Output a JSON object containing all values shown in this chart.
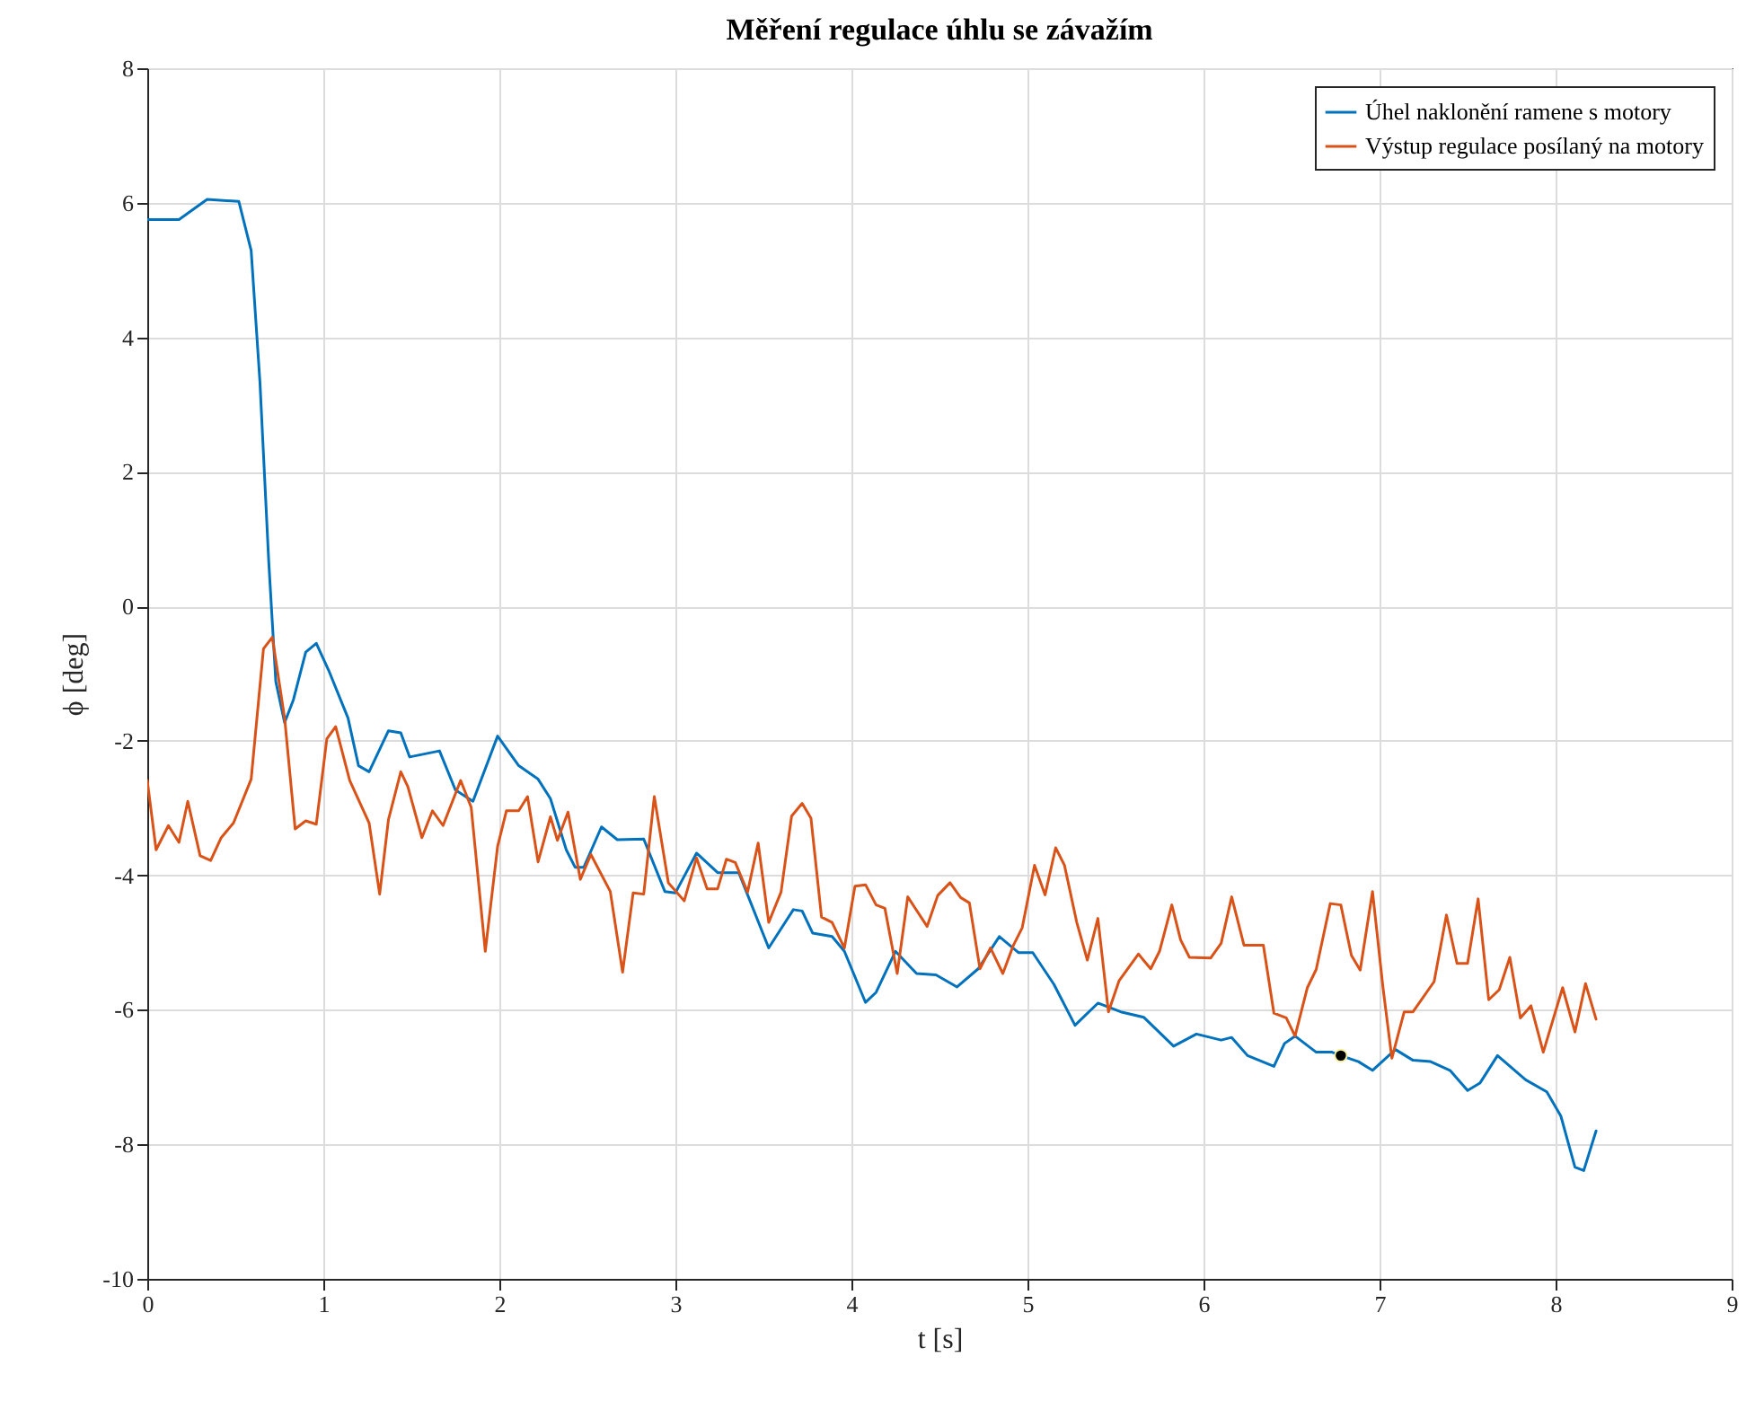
{
  "chart_data": {
    "type": "line",
    "title": "Měření regulace úhlu se závažím",
    "xlabel": "t [s]",
    "ylabel": "ϕ [deg]",
    "xlim": [
      0,
      9
    ],
    "ylim": [
      -10,
      8
    ],
    "xticks": [
      0,
      1,
      2,
      3,
      4,
      5,
      6,
      7,
      8,
      9
    ],
    "yticks": [
      -10,
      -8,
      -6,
      -4,
      -2,
      0,
      2,
      4,
      6,
      8
    ],
    "grid": true,
    "legend": "top right",
    "series": [
      {
        "name": "Úhel naklonění ramene s motory",
        "color": "#0072bd",
        "x": [
          0,
          0.18,
          0.34,
          0.52,
          0.59,
          0.64,
          0.69,
          0.73,
          0.78,
          0.83,
          0.9,
          0.96,
          1.03,
          1.14,
          1.2,
          1.26,
          1.37,
          1.44,
          1.49,
          1.66,
          1.75,
          1.85,
          1.99,
          2.11,
          2.22,
          2.29,
          2.38,
          2.43,
          2.48,
          2.58,
          2.67,
          2.82,
          2.94,
          3.0,
          3.12,
          3.24,
          3.36,
          3.53,
          3.67,
          3.72,
          3.78,
          3.89,
          3.96,
          4.08,
          4.14,
          4.25,
          4.37,
          4.48,
          4.6,
          4.72,
          4.84,
          4.95,
          5.03,
          5.15,
          5.27,
          5.4,
          5.53,
          5.66,
          5.83,
          5.96,
          6.1,
          6.16,
          6.25,
          6.4,
          6.46,
          6.52,
          6.64,
          6.73,
          6.78,
          6.88,
          6.96,
          7.09,
          7.19,
          7.29,
          7.4,
          7.5,
          7.57,
          7.67,
          7.83,
          7.95,
          8.03,
          8.11,
          8.16,
          8.23
        ],
        "values": [
          5.75,
          5.75,
          6.05,
          6.02,
          5.29,
          3.33,
          0.66,
          -1.12,
          -1.73,
          -1.39,
          -0.68,
          -0.55,
          -0.95,
          -1.66,
          -2.37,
          -2.46,
          -1.85,
          -1.88,
          -2.24,
          -2.15,
          -2.73,
          -2.9,
          -1.93,
          -2.37,
          -2.57,
          -2.86,
          -3.62,
          -3.88,
          -3.88,
          -3.28,
          -3.47,
          -3.46,
          -4.24,
          -4.26,
          -3.67,
          -3.96,
          -3.96,
          -5.08,
          -4.51,
          -4.53,
          -4.86,
          -4.91,
          -5.13,
          -5.89,
          -5.74,
          -5.13,
          -5.46,
          -5.48,
          -5.66,
          -5.39,
          -4.91,
          -5.15,
          -5.15,
          -5.62,
          -6.23,
          -5.9,
          -6.03,
          -6.11,
          -6.54,
          -6.36,
          -6.45,
          -6.41,
          -6.68,
          -6.84,
          -6.5,
          -6.39,
          -6.63,
          -6.63,
          -6.68,
          -6.77,
          -6.9,
          -6.59,
          -6.75,
          -6.77,
          -6.9,
          -7.2,
          -7.09,
          -6.68,
          -7.04,
          -7.22,
          -7.58,
          -8.34,
          -8.39,
          -7.8
        ]
      },
      {
        "name": "Výstup regulace posílaný na motory",
        "color": "#d95319",
        "x": [
          0,
          0.05,
          0.12,
          0.18,
          0.23,
          0.3,
          0.36,
          0.42,
          0.49,
          0.59,
          0.66,
          0.71,
          0.78,
          0.84,
          0.9,
          0.96,
          1.02,
          1.07,
          1.15,
          1.26,
          1.32,
          1.37,
          1.44,
          1.48,
          1.56,
          1.62,
          1.68,
          1.78,
          1.84,
          1.92,
          1.99,
          2.04,
          2.11,
          2.16,
          2.22,
          2.29,
          2.33,
          2.39,
          2.46,
          2.52,
          2.63,
          2.7,
          2.76,
          2.82,
          2.88,
          2.96,
          3.05,
          3.12,
          3.18,
          3.24,
          3.29,
          3.34,
          3.41,
          3.47,
          3.53,
          3.6,
          3.66,
          3.72,
          3.77,
          3.83,
          3.89,
          3.96,
          4.02,
          4.08,
          4.14,
          4.19,
          4.26,
          4.32,
          4.43,
          4.49,
          4.56,
          4.62,
          4.67,
          4.73,
          4.79,
          4.86,
          4.92,
          4.97,
          5.04,
          5.1,
          5.16,
          5.21,
          5.28,
          5.34,
          5.4,
          5.46,
          5.52,
          5.63,
          5.7,
          5.75,
          5.82,
          5.87,
          5.92,
          6.04,
          6.1,
          6.16,
          6.23,
          6.34,
          6.4,
          6.47,
          6.52,
          6.59,
          6.64,
          6.72,
          6.78,
          6.84,
          6.89,
          6.96,
          7.02,
          7.07,
          7.14,
          7.19,
          7.31,
          7.38,
          7.44,
          7.5,
          7.56,
          7.62,
          7.68,
          7.74,
          7.8,
          7.86,
          7.93,
          8.04,
          8.11,
          8.17,
          8.23
        ],
        "values": [
          -2.59,
          -3.62,
          -3.26,
          -3.51,
          -2.9,
          -3.71,
          -3.78,
          -3.44,
          -3.22,
          -2.57,
          -0.63,
          -0.46,
          -1.66,
          -3.31,
          -3.19,
          -3.24,
          -1.97,
          -1.79,
          -2.59,
          -3.22,
          -4.28,
          -3.17,
          -2.46,
          -2.68,
          -3.44,
          -3.04,
          -3.26,
          -2.59,
          -2.99,
          -5.13,
          -3.57,
          -3.04,
          -3.04,
          -2.83,
          -3.8,
          -3.13,
          -3.48,
          -3.06,
          -4.06,
          -3.69,
          -4.24,
          -5.44,
          -4.26,
          -4.28,
          -2.83,
          -4.11,
          -4.38,
          -3.74,
          -4.2,
          -4.2,
          -3.76,
          -3.81,
          -4.25,
          -3.52,
          -4.7,
          -4.25,
          -3.12,
          -2.93,
          -3.15,
          -4.62,
          -4.7,
          -5.08,
          -4.16,
          -4.14,
          -4.44,
          -4.49,
          -5.46,
          -4.32,
          -4.76,
          -4.3,
          -4.11,
          -4.33,
          -4.41,
          -5.39,
          -5.08,
          -5.46,
          -5.04,
          -4.78,
          -3.85,
          -4.29,
          -3.59,
          -3.85,
          -4.7,
          -5.26,
          -4.64,
          -6.03,
          -5.57,
          -5.17,
          -5.39,
          -5.13,
          -4.44,
          -4.96,
          -5.22,
          -5.23,
          -5.01,
          -4.32,
          -5.04,
          -5.04,
          -6.05,
          -6.12,
          -6.39,
          -5.67,
          -5.4,
          -4.42,
          -4.44,
          -5.19,
          -5.41,
          -4.24,
          -5.68,
          -6.72,
          -6.03,
          -6.03,
          -5.58,
          -4.59,
          -5.31,
          -5.31,
          -4.35,
          -5.85,
          -5.7,
          -5.22,
          -6.12,
          -5.94,
          -6.63,
          -5.67,
          -6.33,
          -5.61,
          -6.14
        ]
      },
      {
        "type": "scatter",
        "marker": "circle",
        "color": "#000000",
        "x": [
          6.78
        ],
        "values": [
          -6.68
        ]
      }
    ]
  }
}
